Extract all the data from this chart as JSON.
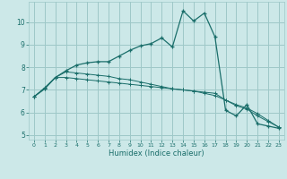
{
  "xlabel": "Humidex (Indice chaleur)",
  "background_color": "#cce8e8",
  "grid_color": "#9ec8c8",
  "line_color": "#1a6e6a",
  "xlim": [
    -0.5,
    23.5
  ],
  "ylim": [
    4.8,
    10.9
  ],
  "yticks": [
    5,
    6,
    7,
    8,
    9,
    10
  ],
  "xticks": [
    0,
    1,
    2,
    3,
    4,
    5,
    6,
    7,
    8,
    9,
    10,
    11,
    12,
    13,
    14,
    15,
    16,
    17,
    18,
    19,
    20,
    21,
    22,
    23
  ],
  "line1_x": [
    0,
    1,
    2,
    3,
    4,
    5,
    6,
    7,
    8,
    9,
    10,
    11,
    12,
    13,
    14,
    15,
    16,
    17,
    18,
    19,
    20,
    21,
    22,
    23
  ],
  "line1_y": [
    6.7,
    7.05,
    7.55,
    7.85,
    8.1,
    8.2,
    8.25,
    8.25,
    8.5,
    8.75,
    8.95,
    9.05,
    9.3,
    8.9,
    10.5,
    10.05,
    10.4,
    9.35,
    6.1,
    5.85,
    6.35,
    5.5,
    5.4,
    5.3
  ],
  "line2_x": [
    0,
    1,
    2,
    3,
    4,
    5,
    6,
    7,
    8,
    9,
    10,
    11,
    12,
    13,
    14,
    15,
    16,
    17,
    18,
    19,
    20,
    21,
    22,
    23
  ],
  "line2_y": [
    6.7,
    7.1,
    7.55,
    7.55,
    7.5,
    7.45,
    7.4,
    7.35,
    7.3,
    7.25,
    7.2,
    7.15,
    7.1,
    7.05,
    7.0,
    6.95,
    6.9,
    6.85,
    6.55,
    6.35,
    6.2,
    5.95,
    5.65,
    5.35
  ],
  "line3_x": [
    0,
    1,
    2,
    3,
    4,
    5,
    6,
    7,
    8,
    9,
    10,
    11,
    12,
    13,
    14,
    15,
    16,
    17,
    18,
    19,
    20,
    21,
    22,
    23
  ],
  "line3_y": [
    6.7,
    7.05,
    7.55,
    7.8,
    7.75,
    7.7,
    7.65,
    7.6,
    7.5,
    7.45,
    7.35,
    7.25,
    7.15,
    7.05,
    7.0,
    6.95,
    6.85,
    6.75,
    6.55,
    6.3,
    6.15,
    5.85,
    5.6,
    5.35
  ]
}
